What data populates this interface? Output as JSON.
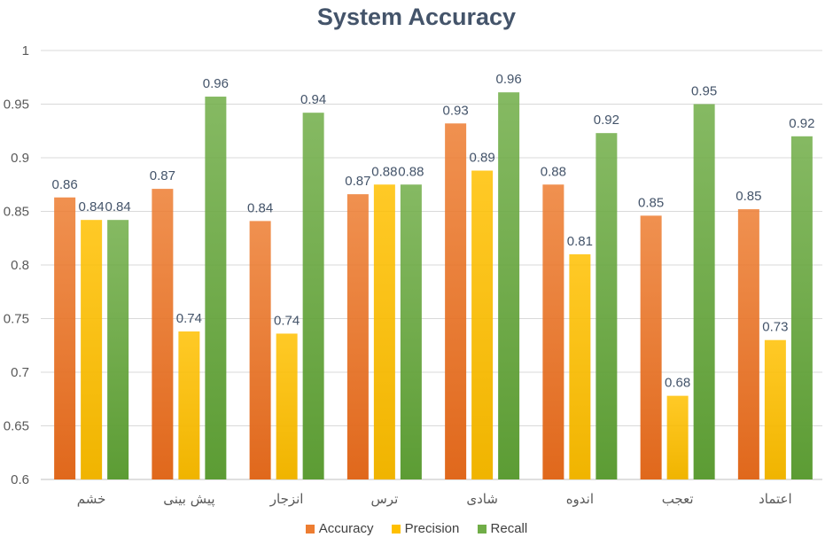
{
  "chart_data": {
    "type": "bar",
    "title": "System Accuracy",
    "categories": [
      "خشم",
      "پیش بینی",
      "انزجار",
      "ترس",
      "شادی",
      "اندوه",
      "تعجب",
      "اعتماد"
    ],
    "ylim": [
      0.6,
      1
    ],
    "yticks": [
      "0.6",
      "0.65",
      "0.7",
      "0.75",
      "0.8",
      "0.85",
      "0.9",
      "0.95",
      "1"
    ],
    "grid": true,
    "legend_position": "bottom",
    "series": [
      {
        "name": "Accuracy",
        "color": "#ed7d31",
        "gradient_bottom": "#e0681c",
        "values": [
          0.863,
          0.871,
          0.841,
          0.866,
          0.932,
          0.875,
          0.846,
          0.852
        ],
        "labels": [
          "0.86",
          "0.87",
          "0.84",
          "0.87",
          "0.93",
          "0.88",
          "0.85",
          "0.85"
        ]
      },
      {
        "name": "Precision",
        "color": "#ffc000",
        "gradient_bottom": "#f0b400",
        "values": [
          0.842,
          0.738,
          0.736,
          0.875,
          0.888,
          0.81,
          0.678,
          0.73
        ],
        "labels": [
          "0.84",
          "0.74",
          "0.74",
          "0.88",
          "0.89",
          "0.81",
          "0.68",
          "0.73"
        ]
      },
      {
        "name": "Recall",
        "color": "#70ad47",
        "gradient_bottom": "#5c9c34",
        "values": [
          0.842,
          0.957,
          0.942,
          0.875,
          0.961,
          0.923,
          0.95,
          0.92
        ],
        "labels": [
          "0.84",
          "0.96",
          "0.94",
          "0.88",
          "0.96",
          "0.92",
          "0.95",
          "0.92"
        ]
      }
    ]
  }
}
